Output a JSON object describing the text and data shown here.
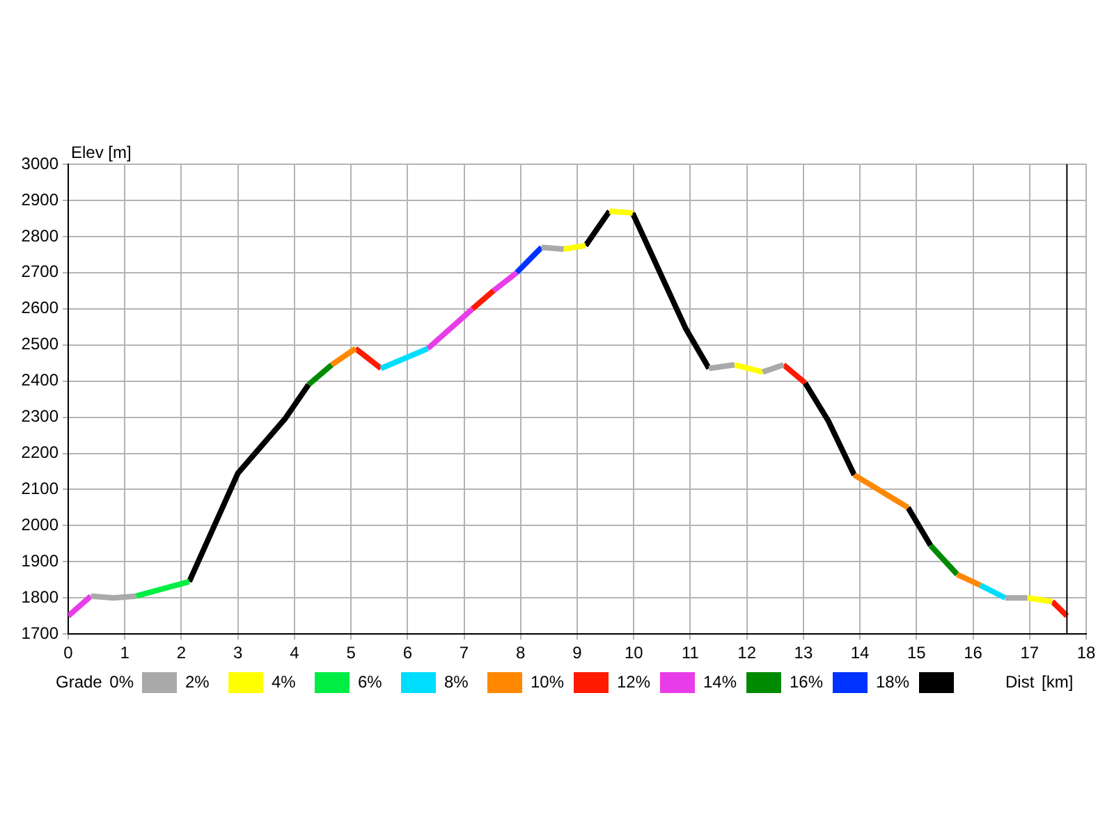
{
  "chart_data": {
    "type": "line",
    "xlabel": "Dist [km]",
    "ylabel": "Elev [m]",
    "legend_title": "Grade 0%",
    "xlim": [
      0,
      18
    ],
    "xticks": [
      0,
      1,
      2,
      3,
      4,
      5,
      6,
      7,
      8,
      9,
      10,
      11,
      12,
      13,
      14,
      15,
      16,
      17,
      18
    ],
    "ylim": [
      1700,
      3000
    ],
    "yticks": [
      1700,
      1800,
      1900,
      2000,
      2100,
      2200,
      2300,
      2400,
      2500,
      2600,
      2700,
      2800,
      2900,
      3000
    ],
    "grid": true,
    "legend": "bottom",
    "marker": "none",
    "line_style": "solid",
    "ref_lines": [
      {
        "axis": "x",
        "value": 17.66,
        "color": "#000000"
      }
    ],
    "series": [
      {
        "name": "2%",
        "color": "#a9a9a9",
        "x": [
          0.4,
          0.8,
          1.2,
          null,
          8.37,
          8.76,
          null,
          11.33,
          11.78,
          null,
          12.28,
          12.65,
          null,
          16.57,
          16.96
        ],
        "values": [
          1805,
          1800,
          1805,
          null,
          2770,
          2765,
          null,
          2435,
          2445,
          null,
          2425,
          2445,
          null,
          1800,
          1800
        ]
      },
      {
        "name": "4%",
        "color": "#ffff00",
        "x": [
          8.76,
          9.15,
          null,
          9.57,
          9.98,
          null,
          11.78,
          12.28,
          null,
          16.96,
          17.4
        ],
        "values": [
          2765,
          2775,
          null,
          2870,
          2865,
          null,
          2445,
          2425,
          null,
          1800,
          1790
        ]
      },
      {
        "name": "6%",
        "color": "#00ee44",
        "x": [
          1.2,
          2.14
        ],
        "values": [
          1805,
          1845
        ]
      },
      {
        "name": "8%",
        "color": "#00ddff",
        "x": [
          5.53,
          6.36,
          null,
          16.13,
          16.57
        ],
        "values": [
          2435,
          2490,
          null,
          1835,
          1800
        ]
      },
      {
        "name": "10%",
        "color": "#ff8800",
        "x": [
          4.66,
          5.08,
          null,
          13.9,
          14.85,
          null,
          15.72,
          16.13
        ],
        "values": [
          2445,
          2490,
          null,
          2140,
          2050,
          null,
          1865,
          1835
        ]
      },
      {
        "name": "12%",
        "color": "#ff1a00",
        "x": [
          5.08,
          5.53,
          null,
          7.15,
          7.52,
          null,
          12.65,
          13.03,
          null,
          17.4,
          17.66
        ],
        "values": [
          2490,
          2435,
          null,
          2600,
          2650,
          null,
          2445,
          2395,
          null,
          1790,
          1750
        ]
      },
      {
        "name": "14%",
        "color": "#e83ce8",
        "x": [
          0,
          0.4,
          null,
          6.36,
          7.15,
          null,
          7.52,
          7.93
        ],
        "values": [
          1750,
          1805,
          null,
          2490,
          2600,
          null,
          2650,
          2700
        ]
      },
      {
        "name": "16%",
        "color": "#008a00",
        "x": [
          4.25,
          4.66,
          null,
          15.25,
          15.72
        ],
        "values": [
          2390,
          2445,
          null,
          1945,
          1865
        ]
      },
      {
        "name": "18%",
        "color": "#0033ff",
        "x": [
          7.93,
          8.37
        ],
        "values": [
          2700,
          2770
        ]
      },
      {
        "color": "#000000",
        "x": [
          2.14,
          3.0,
          3.83,
          4.25,
          null,
          9.15,
          9.57,
          null,
          9.98,
          10.92,
          11.33,
          null,
          13.03,
          13.44,
          13.9,
          null,
          14.85,
          15.25
        ],
        "values": [
          1845,
          2145,
          2295,
          2390,
          null,
          2775,
          2870,
          null,
          2865,
          2545,
          2435,
          null,
          2395,
          2290,
          2140,
          null,
          2050,
          1945
        ]
      }
    ]
  }
}
